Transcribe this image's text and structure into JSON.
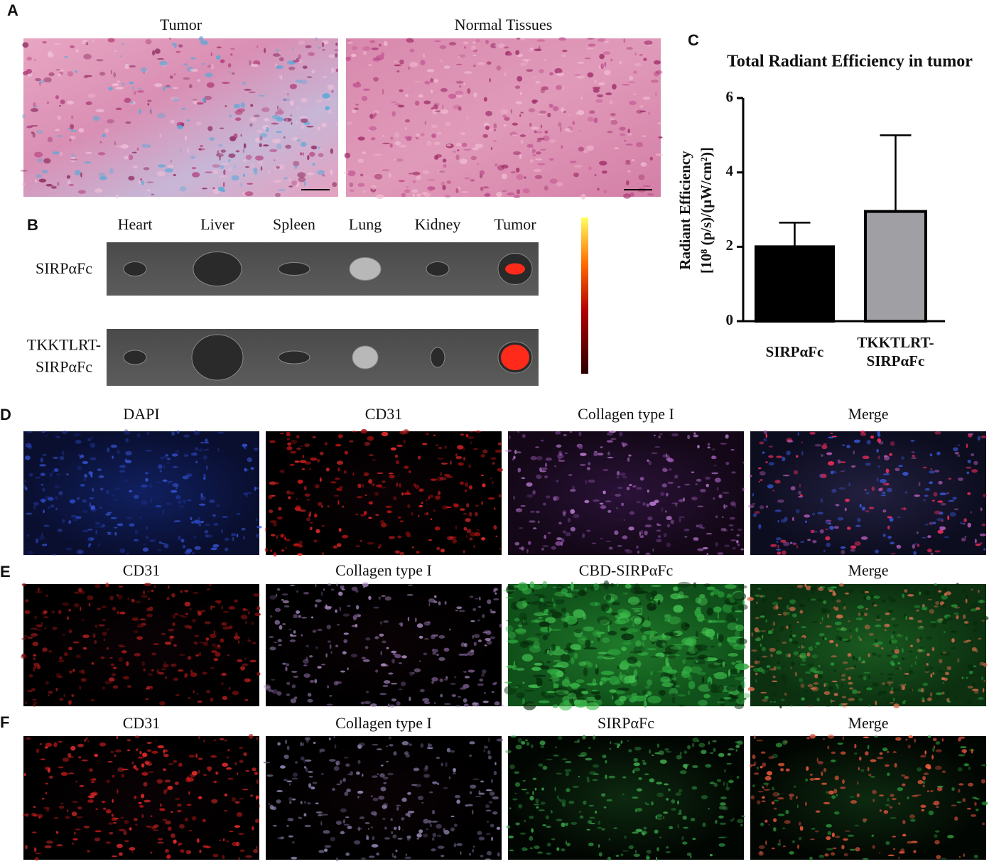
{
  "panels": [
    {
      "label": "A",
      "titles": [
        "Tumor",
        "Normal Tissues"
      ]
    },
    {
      "label": "B",
      "columns": [
        "Heart",
        "Liver",
        "Spleen",
        "Lung",
        "Kidney",
        "Tumor"
      ],
      "rows": [
        "SIRPαFc",
        "TKKTLRT-SIRPαFc"
      ]
    },
    {
      "label": "C"
    },
    {
      "label": "D",
      "titles": [
        "DAPI",
        "CD31",
        "Collagen type I",
        "Merge"
      ]
    },
    {
      "label": "E",
      "titles": [
        "CD31",
        "Collagen type I",
        "CBD-SIRPαFc",
        "Merge"
      ]
    },
    {
      "label": "F",
      "titles": [
        "CD31",
        "Collagen type I",
        "SIRPαFc",
        "Merge"
      ]
    }
  ],
  "chart_data": {
    "type": "bar",
    "title": "Total Radiant Efficiency in tumor",
    "y_label": [
      "Radiant Efficiency",
      "[10⁸ (p/s)/(μW/cm²)]"
    ],
    "categories": [
      "SIRPαFc",
      "TKKTLRT-SIRPαFc"
    ],
    "values": [
      2.0,
      2.95
    ],
    "errors": [
      0.65,
      2.05
    ],
    "colors": [
      "#000000",
      "#a0a0a4"
    ],
    "ylim": [
      0,
      6
    ],
    "yticks": [
      0,
      2,
      4,
      6
    ]
  }
}
